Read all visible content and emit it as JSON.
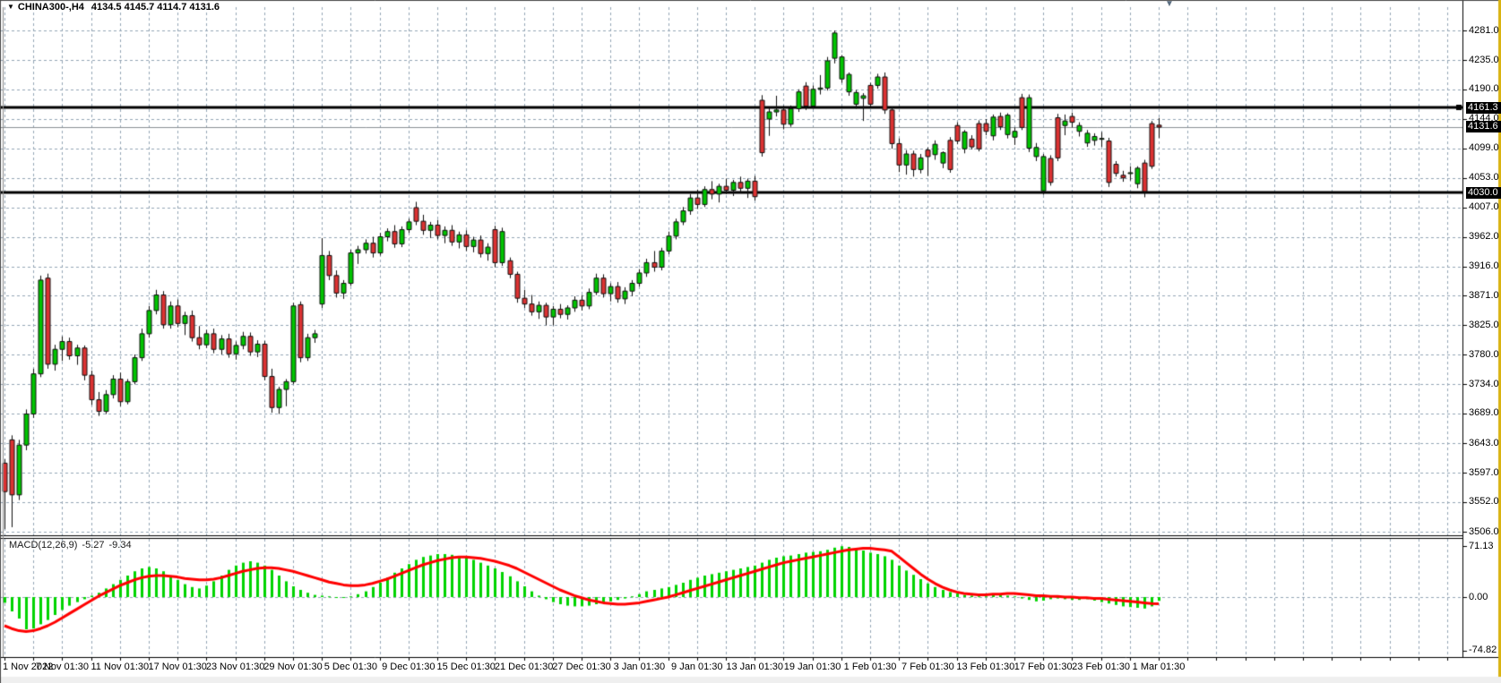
{
  "window": {
    "title_symbol": "CHINA300-,H4",
    "title_ohlc": "4134.5 4145.7 4114.7 4131.6",
    "dropdown_icon": "▼",
    "shift_marker_icon": "▼"
  },
  "chart_data": {
    "type": "candlestick",
    "title": "CHINA300-,H4",
    "last_candle": {
      "open": 4134.5,
      "high": 4145.7,
      "low": 4114.7,
      "close": 4131.6
    },
    "price_axis": {
      "min": 3506.0,
      "max": 4281.0,
      "tick_labels": [
        "4281.0",
        "4235.0",
        "4190.0",
        "4144.0",
        "4099.0",
        "4053.0",
        "4007.0",
        "3962.0",
        "3916.0",
        "3871.0",
        "3825.0",
        "3780.0",
        "3734.0",
        "3689.0",
        "3643.0",
        "3597.0",
        "3552.0",
        "3506.0"
      ]
    },
    "tags": [
      {
        "text": "4161.3",
        "price": 4161.3
      },
      {
        "text": "4131.6",
        "price": 4131.6
      },
      {
        "text": "4030.0",
        "price": 4030.0
      }
    ],
    "hlines": [
      {
        "price": 4161.3
      },
      {
        "price": 4030.0
      }
    ],
    "bid_line": {
      "price": 4131.6
    },
    "time_labels": [
      "1 Nov 2022",
      "7 Nov 01:30",
      "11 Nov 01:30",
      "17 Nov 01:30",
      "23 Nov 01:30",
      "29 Nov 01:30",
      "5 Dec 01:30",
      "9 Dec 01:30",
      "15 Dec 01:30",
      "21 Dec 01:30",
      "27 Dec 01:30",
      "3 Jan 01:30",
      "9 Jan 01:30",
      "13 Jan 01:30",
      "19 Jan 01:30",
      "1 Feb 01:30",
      "7 Feb 01:30",
      "13 Feb 01:30",
      "17 Feb 01:30",
      "23 Feb 01:30",
      "1 Mar 01:30"
    ],
    "grid": {
      "on": true
    },
    "candles": [
      [
        3612,
        3618,
        3510,
        3568
      ],
      [
        3648,
        3655,
        3513,
        3563
      ],
      [
        3563,
        3648,
        3555,
        3640
      ],
      [
        3640,
        3695,
        3632,
        3688
      ],
      [
        3688,
        3758,
        3682,
        3750
      ],
      [
        3750,
        3902,
        3745,
        3895
      ],
      [
        3898,
        3905,
        3758,
        3765
      ],
      [
        3765,
        3795,
        3755,
        3788
      ],
      [
        3788,
        3808,
        3770,
        3800
      ],
      [
        3800,
        3806,
        3772,
        3778
      ],
      [
        3778,
        3795,
        3764,
        3790
      ],
      [
        3790,
        3794,
        3740,
        3748
      ],
      [
        3748,
        3755,
        3702,
        3710
      ],
      [
        3710,
        3722,
        3685,
        3692
      ],
      [
        3692,
        3725,
        3688,
        3718
      ],
      [
        3718,
        3748,
        3712,
        3742
      ],
      [
        3742,
        3752,
        3700,
        3707
      ],
      [
        3707,
        3742,
        3703,
        3738
      ],
      [
        3738,
        3780,
        3734,
        3775
      ],
      [
        3775,
        3820,
        3770,
        3812
      ],
      [
        3812,
        3855,
        3806,
        3848
      ],
      [
        3848,
        3880,
        3842,
        3872
      ],
      [
        3872,
        3878,
        3820,
        3826
      ],
      [
        3826,
        3862,
        3820,
        3855
      ],
      [
        3855,
        3865,
        3822,
        3828
      ],
      [
        3828,
        3846,
        3810,
        3840
      ],
      [
        3840,
        3848,
        3800,
        3806
      ],
      [
        3806,
        3824,
        3788,
        3795
      ],
      [
        3795,
        3818,
        3790,
        3812
      ],
      [
        3812,
        3820,
        3782,
        3788
      ],
      [
        3788,
        3810,
        3780,
        3804
      ],
      [
        3804,
        3812,
        3775,
        3781
      ],
      [
        3781,
        3800,
        3772,
        3794
      ],
      [
        3794,
        3815,
        3788,
        3808
      ],
      [
        3808,
        3814,
        3778,
        3784
      ],
      [
        3784,
        3802,
        3776,
        3796
      ],
      [
        3796,
        3801,
        3740,
        3746
      ],
      [
        3746,
        3758,
        3690,
        3698
      ],
      [
        3698,
        3730,
        3688,
        3726
      ],
      [
        3726,
        3742,
        3700,
        3738
      ],
      [
        3738,
        3860,
        3734,
        3855
      ],
      [
        3857,
        3862,
        3768,
        3775
      ],
      [
        3775,
        3812,
        3770,
        3806
      ],
      [
        3806,
        3818,
        3798,
        3812
      ],
      [
        3858,
        3960,
        3852,
        3933
      ],
      [
        3933,
        3940,
        3895,
        3902
      ],
      [
        3902,
        3910,
        3868,
        3875
      ],
      [
        3875,
        3895,
        3866,
        3890
      ],
      [
        3890,
        3942,
        3886,
        3937
      ],
      [
        3937,
        3948,
        3920,
        3942
      ],
      [
        3942,
        3958,
        3936,
        3952
      ],
      [
        3952,
        3962,
        3930,
        3937
      ],
      [
        3937,
        3968,
        3933,
        3962
      ],
      [
        3962,
        3975,
        3955,
        3970
      ],
      [
        3970,
        3980,
        3945,
        3951
      ],
      [
        3951,
        3978,
        3946,
        3973
      ],
      [
        3973,
        3990,
        3968,
        3985
      ],
      [
        4007,
        4016,
        3980,
        3986
      ],
      [
        3986,
        3996,
        3965,
        3972
      ],
      [
        3972,
        3985,
        3960,
        3980
      ],
      [
        3980,
        3988,
        3958,
        3964
      ],
      [
        3964,
        3978,
        3952,
        3972
      ],
      [
        3972,
        3980,
        3948,
        3954
      ],
      [
        3954,
        3970,
        3944,
        3965
      ],
      [
        3965,
        3972,
        3940,
        3947
      ],
      [
        3947,
        3962,
        3938,
        3957
      ],
      [
        3957,
        3964,
        3930,
        3936
      ],
      [
        3936,
        3952,
        3925,
        3946
      ],
      [
        3973,
        3979,
        3915,
        3922
      ],
      [
        3922,
        3976,
        3917,
        3970
      ],
      [
        3925,
        3930,
        3898,
        3904
      ],
      [
        3904,
        3908,
        3860,
        3867
      ],
      [
        3867,
        3880,
        3852,
        3858
      ],
      [
        3858,
        3872,
        3840,
        3846
      ],
      [
        3846,
        3862,
        3835,
        3856
      ],
      [
        3856,
        3860,
        3825,
        3838
      ],
      [
        3838,
        3855,
        3825,
        3850
      ],
      [
        3850,
        3858,
        3836,
        3842
      ],
      [
        3842,
        3856,
        3834,
        3852
      ],
      [
        3852,
        3870,
        3846,
        3864
      ],
      [
        3864,
        3872,
        3848,
        3855
      ],
      [
        3855,
        3882,
        3850,
        3876
      ],
      [
        3876,
        3905,
        3872,
        3898
      ],
      [
        3898,
        3904,
        3868,
        3874
      ],
      [
        3874,
        3890,
        3862,
        3885
      ],
      [
        3885,
        3892,
        3860,
        3866
      ],
      [
        3866,
        3884,
        3858,
        3878
      ],
      [
        3878,
        3895,
        3870,
        3890
      ],
      [
        3890,
        3912,
        3885,
        3906
      ],
      [
        3906,
        3928,
        3900,
        3922
      ],
      [
        3922,
        3940,
        3908,
        3915
      ],
      [
        3915,
        3945,
        3910,
        3940
      ],
      [
        3940,
        3970,
        3935,
        3963
      ],
      [
        3963,
        3990,
        3958,
        3985
      ],
      [
        3985,
        4008,
        3980,
        4002
      ],
      [
        4002,
        4028,
        3996,
        4022
      ],
      [
        4022,
        4035,
        4005,
        4012
      ],
      [
        4012,
        4040,
        4008,
        4035
      ],
      [
        4035,
        4048,
        4020,
        4028
      ],
      [
        4028,
        4044,
        4015,
        4040
      ],
      [
        4040,
        4052,
        4028,
        4034
      ],
      [
        4034,
        4050,
        4025,
        4046
      ],
      [
        4046,
        4055,
        4030,
        4037
      ],
      [
        4037,
        4052,
        4022,
        4048
      ],
      [
        4048,
        4056,
        4018,
        4024
      ],
      [
        4173,
        4181,
        4086,
        4092
      ],
      [
        4144,
        4162,
        4118,
        4155
      ],
      [
        4155,
        4180,
        4148,
        4158
      ],
      [
        4158,
        4165,
        4128,
        4136
      ],
      [
        4136,
        4165,
        4132,
        4160
      ],
      [
        4160,
        4190,
        4155,
        4186
      ],
      [
        4195,
        4201,
        4158,
        4164
      ],
      [
        4164,
        4196,
        4160,
        4190
      ],
      [
        4190,
        4212,
        4182,
        4192
      ],
      [
        4192,
        4240,
        4188,
        4234
      ],
      [
        4238,
        4281,
        4230,
        4277
      ],
      [
        4206,
        4243,
        4200,
        4240
      ],
      [
        4186,
        4216,
        4180,
        4213
      ],
      [
        4167,
        4189,
        4160,
        4185
      ],
      [
        4176,
        4184,
        4141,
        4180
      ],
      [
        4196,
        4200,
        4163,
        4167
      ],
      [
        4196,
        4214,
        4191,
        4209
      ],
      [
        4209,
        4216,
        4152,
        4158
      ],
      [
        4158,
        4163,
        4098,
        4106
      ],
      [
        4106,
        4114,
        4062,
        4073
      ],
      [
        4073,
        4096,
        4058,
        4090
      ],
      [
        4090,
        4095,
        4055,
        4066
      ],
      [
        4066,
        4090,
        4060,
        4084
      ],
      [
        4096,
        4100,
        4056,
        4086
      ],
      [
        4089,
        4111,
        4081,
        4105
      ],
      [
        4076,
        4094,
        4068,
        4092
      ],
      [
        4111,
        4116,
        4061,
        4066
      ],
      [
        4134,
        4139,
        4105,
        4110
      ],
      [
        4098,
        4127,
        4091,
        4124
      ],
      [
        4113,
        4119,
        4097,
        4101
      ],
      [
        4137,
        4142,
        4094,
        4098
      ],
      [
        4137,
        4144,
        4119,
        4125
      ],
      [
        4118,
        4151,
        4111,
        4147
      ],
      [
        4148,
        4154,
        4127,
        4132
      ],
      [
        4120,
        4153,
        4114,
        4150
      ],
      [
        4116,
        4131,
        4104,
        4125
      ],
      [
        4177,
        4183,
        4127,
        4131
      ],
      [
        4099,
        4182,
        4093,
        4177
      ],
      [
        4086,
        4107,
        4079,
        4100
      ],
      [
        4033,
        4090,
        4027,
        4086
      ],
      [
        4083,
        4088,
        4041,
        4046
      ],
      [
        4146,
        4152,
        4079,
        4084
      ],
      [
        4134,
        4151,
        4119,
        4141
      ],
      [
        4148,
        4154,
        4131,
        4139
      ],
      [
        4125,
        4139,
        4117,
        4134
      ],
      [
        4107,
        4127,
        4101,
        4122
      ],
      [
        4111,
        4122,
        4103,
        4117
      ],
      [
        4113,
        4124,
        4101,
        4114
      ],
      [
        4110,
        4115,
        4039,
        4046
      ],
      [
        4074,
        4079,
        4055,
        4060
      ],
      [
        4057,
        4064,
        4047,
        4053
      ],
      [
        4060,
        4071,
        4049,
        4061
      ],
      [
        4044,
        4071,
        4037,
        4068
      ],
      [
        4076,
        4081,
        4023,
        4032
      ],
      [
        4137,
        4141,
        4067,
        4071
      ],
      [
        4134.5,
        4145.7,
        4114.7,
        4131.6
      ]
    ],
    "indicator": {
      "name": "MACD",
      "label": "MACD(12,26,9)",
      "value_macd": "-5.27",
      "value_signal": "-9.34",
      "axis_labels": [
        "71.13",
        "0.00",
        "-74.82"
      ],
      "axis_max": 71.13,
      "axis_min": -74.82,
      "histogram": [
        -8,
        -20,
        -30,
        -45,
        -44,
        -38,
        -32,
        -25,
        -18,
        -12,
        -7,
        -3,
        2,
        6,
        12,
        18,
        24,
        30,
        36,
        40,
        42,
        40,
        36,
        30,
        24,
        18,
        14,
        12,
        16,
        22,
        30,
        38,
        44,
        48,
        50,
        48,
        44,
        38,
        30,
        22,
        15,
        10,
        6,
        3,
        2,
        1,
        0,
        -1,
        1,
        4,
        8,
        14,
        20,
        27,
        34,
        40,
        46,
        52,
        56,
        58,
        60,
        60,
        59,
        57,
        55,
        52,
        48,
        44,
        40,
        35,
        29,
        22,
        15,
        8,
        2,
        -3,
        -7,
        -10,
        -12,
        -13,
        -13,
        -12,
        -10,
        -8,
        -6,
        -4,
        -2,
        1,
        4,
        8,
        10,
        12,
        14,
        17,
        20,
        24,
        27,
        30,
        32,
        34,
        36,
        38,
        40,
        42,
        44,
        48,
        52,
        55,
        57,
        58,
        60,
        62,
        63,
        64,
        66,
        69,
        71,
        70,
        68,
        65,
        62,
        60,
        57,
        52,
        44,
        37,
        31,
        25,
        19,
        14,
        10,
        7,
        5,
        3,
        2,
        1,
        1,
        3,
        3,
        2,
        1,
        -2,
        -4,
        -6,
        -5,
        -3,
        -2,
        -3,
        -4,
        -4,
        -3,
        -5,
        -7,
        -9,
        -11,
        -13,
        -14,
        -15,
        -16,
        -13,
        -5.3
      ],
      "signal_line": [
        -40,
        -44,
        -47,
        -48,
        -47,
        -44,
        -40,
        -35,
        -29,
        -23,
        -17,
        -11,
        -5,
        1,
        6,
        11,
        16,
        20,
        24,
        27,
        29,
        30,
        30,
        29,
        28,
        26,
        25,
        24,
        24,
        25,
        27,
        30,
        33,
        36,
        38,
        40,
        41,
        41,
        40,
        38,
        36,
        33,
        30,
        27,
        24,
        21,
        19,
        17,
        16,
        16,
        17,
        19,
        22,
        25,
        29,
        33,
        37,
        41,
        45,
        48,
        51,
        53,
        55,
        56,
        56,
        55,
        54,
        52,
        50,
        47,
        44,
        40,
        35,
        30,
        25,
        20,
        15,
        10,
        6,
        2,
        -1,
        -4,
        -6,
        -8,
        -9,
        -10,
        -10,
        -9,
        -8,
        -6,
        -4,
        -2,
        0,
        3,
        6,
        9,
        12,
        15,
        18,
        21,
        24,
        27,
        30,
        33,
        36,
        39,
        42,
        45,
        48,
        50,
        52,
        54,
        56,
        58,
        60,
        62,
        64,
        66,
        67,
        68,
        68,
        67,
        66,
        64,
        56,
        48,
        40,
        32,
        25,
        19,
        14,
        10,
        7,
        5,
        4,
        3,
        3,
        4,
        4,
        5,
        5,
        4,
        3,
        2,
        2,
        1,
        1,
        0,
        0,
        -1,
        -1,
        -2,
        -2,
        -3,
        -4,
        -5,
        -6,
        -7,
        -8,
        -9,
        -9.3
      ]
    },
    "colors": {
      "bull": "#00c400",
      "bear": "#dc3232",
      "candle_outline": "#101010",
      "grid": "#93a5b5",
      "hline": "#000000",
      "bid_line": "#8a8f94",
      "macd_histogram": "#00d400",
      "macd_signal": "#ff0000",
      "tag_bg": "#000000",
      "tag_text": "#ffffff",
      "right_edge": "#d9b310",
      "shift_marker": "#5d7083",
      "frame": "#000000"
    }
  }
}
